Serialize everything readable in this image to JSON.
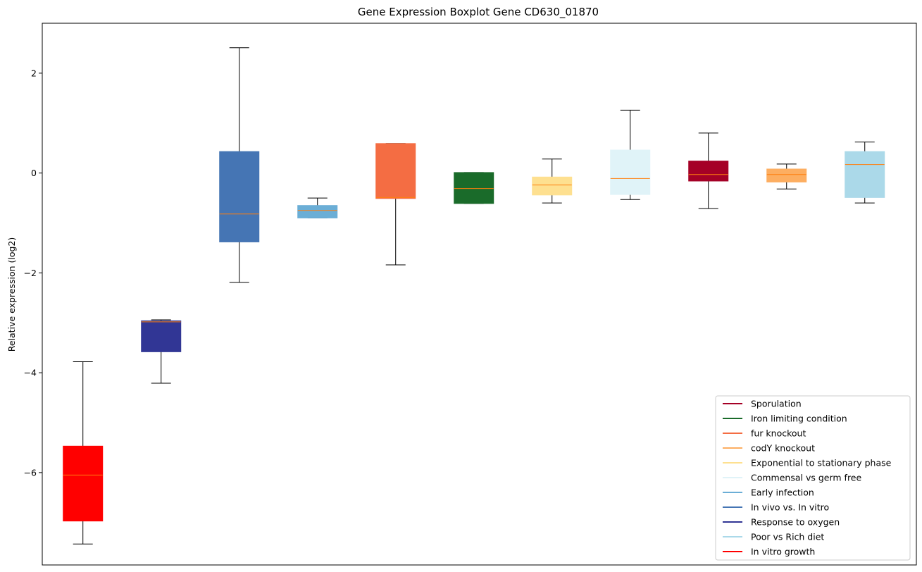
{
  "chart_data": {
    "type": "boxplot",
    "title": "Gene Expression Boxplot Gene CD630_01870",
    "xlabel": "",
    "ylabel": "Relative expression (log2)",
    "ylim": [
      -7.85,
      3.0
    ],
    "yticks": [
      2,
      0,
      -2,
      -4,
      -6
    ],
    "ytick_labels": [
      "2",
      "0",
      "−2",
      "−4",
      "−6"
    ],
    "legend_position": "lower-right",
    "median_color": "#ff7f0e",
    "boxes": [
      {
        "name": "In vitro growth",
        "color": "#ff0000",
        "whislo": -7.43,
        "q1": -6.97,
        "med": -6.05,
        "q3": -5.47,
        "whishi": -3.78
      },
      {
        "name": "Response to oxygen",
        "color": "#313695",
        "whislo": -4.21,
        "q1": -3.58,
        "med": -2.98,
        "q3": -2.96,
        "whishi": -2.94
      },
      {
        "name": "In vivo vs. In vitro",
        "color": "#4575b4",
        "whislo": -2.19,
        "q1": -1.38,
        "med": -0.82,
        "q3": 0.43,
        "whishi": 2.51
      },
      {
        "name": "Early infection",
        "color": "#6baed6",
        "whislo": -0.9,
        "q1": -0.9,
        "med": -0.75,
        "q3": -0.65,
        "whishi": -0.5
      },
      {
        "name": "fur knockout",
        "color": "#f46d43",
        "whislo": -1.84,
        "q1": -0.51,
        "med": -0.49,
        "q3": 0.59,
        "whishi": 0.59
      },
      {
        "name": "Iron limiting condition",
        "color": "#1a6b2a",
        "whislo": -0.61,
        "q1": -0.61,
        "med": -0.31,
        "q3": 0.01,
        "whishi": 0.01
      },
      {
        "name": "Exponential to stationary phase",
        "color": "#fee090",
        "whislo": -0.6,
        "q1": -0.44,
        "med": -0.24,
        "q3": -0.08,
        "whishi": 0.28
      },
      {
        "name": "Commensal vs germ free",
        "color": "#e0f3f8",
        "whislo": -0.53,
        "q1": -0.43,
        "med": -0.11,
        "q3": 0.46,
        "whishi": 1.26
      },
      {
        "name": "Sporulation",
        "color": "#a50026",
        "whislo": -0.71,
        "q1": -0.16,
        "med": -0.03,
        "q3": 0.24,
        "whishi": 0.8
      },
      {
        "name": "codY knockout",
        "color": "#fdae61",
        "whislo": -0.32,
        "q1": -0.18,
        "med": -0.03,
        "q3": 0.08,
        "whishi": 0.18
      },
      {
        "name": "Poor vs Rich diet",
        "color": "#abd9e9",
        "whislo": -0.6,
        "q1": -0.49,
        "med": 0.17,
        "q3": 0.43,
        "whishi": 0.62
      }
    ],
    "legend": [
      {
        "label": "Sporulation",
        "color": "#a50026"
      },
      {
        "label": "Iron limiting condition",
        "color": "#1a6b2a"
      },
      {
        "label": "fur knockout",
        "color": "#f46d43"
      },
      {
        "label": "codY knockout",
        "color": "#fdae61"
      },
      {
        "label": "Exponential to stationary phase",
        "color": "#fee090"
      },
      {
        "label": "Commensal vs germ free",
        "color": "#e0f3f8"
      },
      {
        "label": "Early infection",
        "color": "#6baed6"
      },
      {
        "label": "In vivo vs. In vitro",
        "color": "#4575b4"
      },
      {
        "label": "Response to oxygen",
        "color": "#313695"
      },
      {
        "label": "Poor vs Rich diet",
        "color": "#abd9e9"
      },
      {
        "label": "In vitro growth",
        "color": "#ff0000"
      }
    ]
  }
}
